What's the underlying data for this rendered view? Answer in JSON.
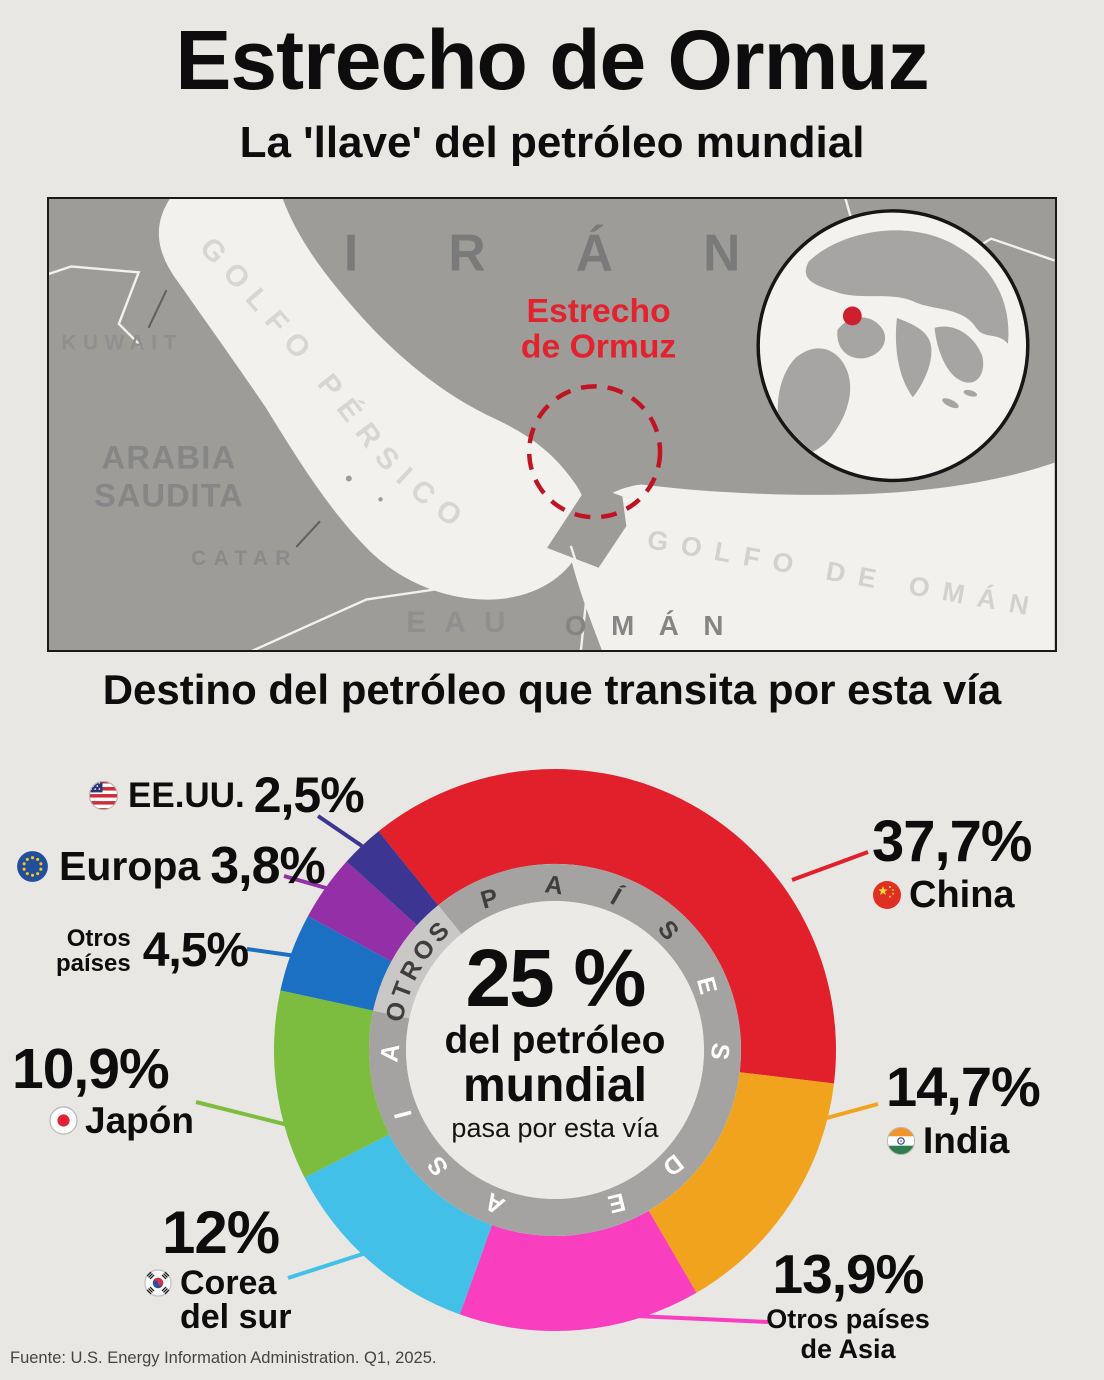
{
  "header": {
    "title": "Estrecho de Ormuz",
    "subtitle": "La 'llave' del petróleo mundial"
  },
  "map": {
    "labels": {
      "iran": "IRÁN",
      "kuwait": "KUWAIT",
      "golfo_persico": "GOLFO PÉRSICO",
      "arabia_line1": "ARABIA",
      "arabia_line2": "SAUDITA",
      "catar": "CATAR",
      "eau": "EAU",
      "oman": "OMÁN",
      "golfo_oman": "GOLFO DE OMÁN",
      "strait_line1": "Estrecho",
      "strait_line2": "de Ormuz"
    },
    "marker_color": "#bf1422"
  },
  "chart_data": {
    "type": "donut",
    "title": "Destino del petróleo que transita por esta vía",
    "center": {
      "value": "25 %",
      "line1": "del petróleo",
      "line2": "mundial",
      "line3": "pasa por esta vía"
    },
    "ring_labels": {
      "asia": "PAÍSES DE ASIA",
      "otros": "OTROS"
    },
    "ring_colors": {
      "asia": "#a4a3a1",
      "otros": "#c9c8c6",
      "center": "#eceae7"
    },
    "start_angle_deg": 321.12,
    "legend_position": "callouts",
    "series": [
      {
        "name": "China",
        "label": "37,7%",
        "value": 37.7,
        "color": "#e2202b",
        "flag": "china"
      },
      {
        "name": "India",
        "label": "14,7%",
        "value": 14.7,
        "color": "#f2a31d",
        "flag": "india"
      },
      {
        "name": "Otros países de Asia",
        "name_line1": "Otros países",
        "name_line2": "de Asia",
        "label": "13,9%",
        "value": 13.9,
        "color": "#f93ec0"
      },
      {
        "name": "Corea del sur",
        "name_line1": "Corea",
        "name_line2": "del sur",
        "label": "12%",
        "value": 12.0,
        "color": "#42c0e8",
        "flag": "korea"
      },
      {
        "name": "Japón",
        "label": "10,9%",
        "value": 10.9,
        "color": "#7cbd40",
        "flag": "japan"
      },
      {
        "name": "Otros países",
        "name_line1": "Otros",
        "name_line2": "países",
        "label": "4,5%",
        "value": 4.5,
        "color": "#1c70c4"
      },
      {
        "name": "Europa",
        "label": "3,8%",
        "value": 3.8,
        "color": "#9330a8",
        "flag": "eu"
      },
      {
        "name": "EE.UU.",
        "label": "2,5%",
        "value": 2.5,
        "color": "#3d3592",
        "flag": "us"
      }
    ]
  },
  "footer": {
    "source": "Fuente: U.S. Energy Information Administration. Q1, 2025."
  }
}
